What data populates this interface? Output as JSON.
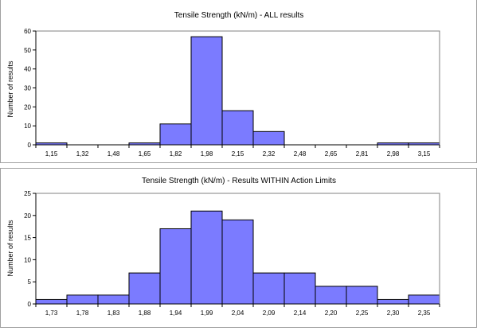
{
  "chart_data": [
    {
      "type": "bar",
      "title": "Tensile Strength (kN/m) - ALL results",
      "ylabel": "Number of results",
      "xlabel": "",
      "categories": [
        "1,15",
        "1,32",
        "1,48",
        "1,65",
        "1,82",
        "1,98",
        "2,15",
        "2,32",
        "2,48",
        "2,65",
        "2,81",
        "2,98",
        "3,15"
      ],
      "values": [
        1,
        0,
        0,
        1,
        11,
        57,
        18,
        7,
        0,
        0,
        0,
        1,
        1
      ],
      "yticks": [
        "0",
        "10",
        "20",
        "30",
        "40",
        "50",
        "60"
      ],
      "ylim": [
        0,
        60
      ],
      "grid": false,
      "bar_color": "#7b7bff"
    },
    {
      "type": "bar",
      "title": "Tensile Strength (kN/m) - Results WITHIN Action Limits",
      "ylabel": "Number of results",
      "xlabel": "",
      "categories": [
        "1,73",
        "1,78",
        "1,83",
        "1,88",
        "1,94",
        "1,99",
        "2,04",
        "2,09",
        "2,14",
        "2,20",
        "2,25",
        "2,30",
        "2,35"
      ],
      "values": [
        1,
        2,
        2,
        7,
        17,
        21,
        19,
        7,
        7,
        4,
        4,
        1,
        2
      ],
      "yticks": [
        "0",
        "5",
        "10",
        "15",
        "20",
        "25"
      ],
      "ylim": [
        0,
        25
      ],
      "grid": false,
      "bar_color": "#7b7bff"
    }
  ]
}
